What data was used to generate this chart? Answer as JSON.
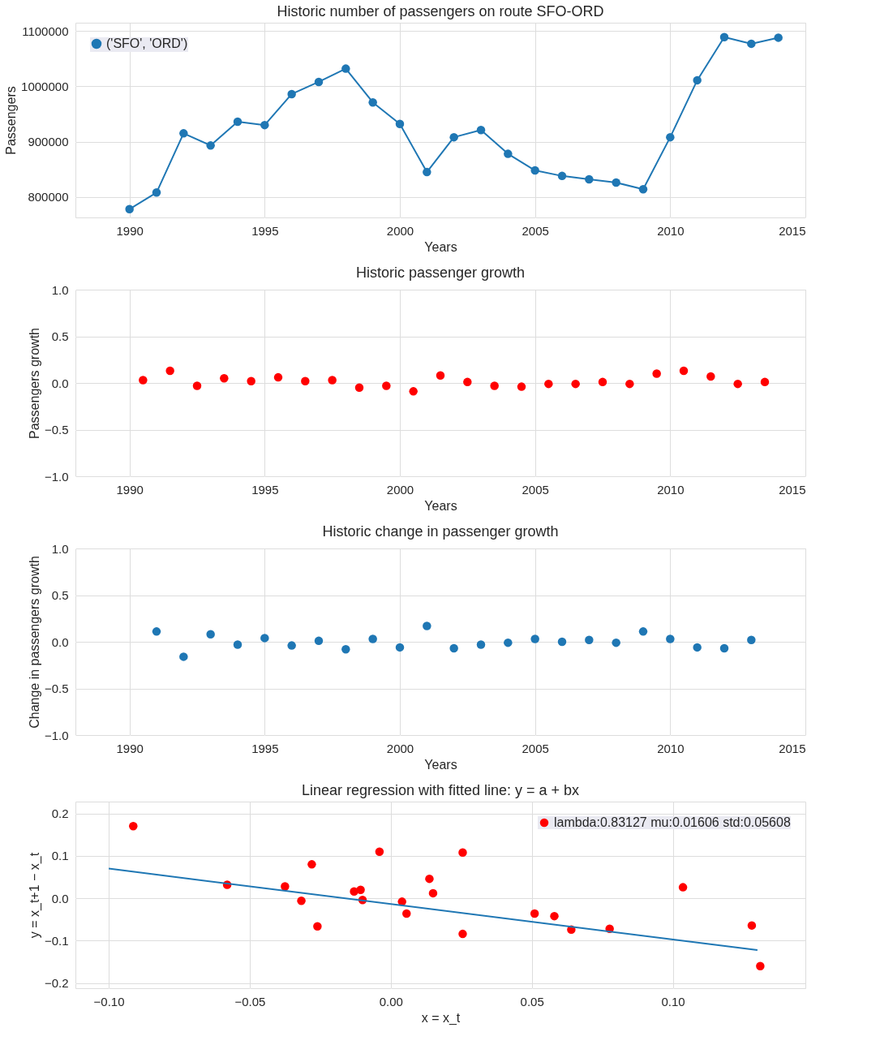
{
  "chart_data": [
    {
      "type": "line",
      "title": "Historic number of passengers on route SFO-ORD",
      "xlabel": "Years",
      "ylabel": "Passengers",
      "marker": "circle",
      "grid": true,
      "legend": "top left",
      "xlim": [
        1988,
        2015
      ],
      "xticks": [
        1990,
        1995,
        2000,
        2005,
        2010,
        2015
      ],
      "ylim": [
        763000,
        1115000
      ],
      "yticks": [
        800000,
        900000,
        1000000,
        1100000
      ],
      "x": [
        1990,
        1991,
        1992,
        1993,
        1994,
        1995,
        1996,
        1997,
        1998,
        1999,
        2000,
        2001,
        2002,
        2003,
        2004,
        2005,
        2006,
        2007,
        2008,
        2009,
        2010,
        2011,
        2012,
        2013,
        2014
      ],
      "series": [
        {
          "name": "('SFO', 'ORD')",
          "color": "#1f77b4",
          "values": [
            778000,
            808000,
            915000,
            893000,
            936000,
            930000,
            986000,
            1008000,
            1032000,
            971000,
            932000,
            845000,
            908000,
            921000,
            878000,
            848000,
            838000,
            832000,
            826000,
            814000,
            908000,
            1011000,
            1089000,
            1077000,
            1088000
          ]
        }
      ]
    },
    {
      "type": "scatter",
      "title": "Historic passenger growth",
      "xlabel": "Years",
      "ylabel": "Passengers growth",
      "grid": true,
      "xlim": [
        1988,
        2015
      ],
      "xticks": [
        1990,
        1995,
        2000,
        2005,
        2010,
        2015
      ],
      "ylim": [
        -1,
        1
      ],
      "yticks": [
        {
          "value": -1,
          "label": "−1.0"
        },
        {
          "value": -0.5,
          "label": "−0.5"
        },
        {
          "value": 0,
          "label": "0.0"
        },
        {
          "value": 0.5,
          "label": "0.5"
        },
        {
          "value": 1,
          "label": "1.0"
        }
      ],
      "x": [
        1990.5,
        1991.5,
        1992.5,
        1993.5,
        1994.5,
        1995.5,
        1996.5,
        1997.5,
        1998.5,
        1999.5,
        2000.5,
        2001.5,
        2002.5,
        2003.5,
        2004.5,
        2005.5,
        2006.5,
        2007.5,
        2008.5,
        2009.5,
        2010.5,
        2011.5,
        2012.5,
        2013.5
      ],
      "series": [
        {
          "color": "#ff0000",
          "values": [
            0.03,
            0.13,
            -0.03,
            0.05,
            0.02,
            0.06,
            0.02,
            0.03,
            -0.05,
            -0.03,
            -0.09,
            0.08,
            0.01,
            -0.03,
            -0.04,
            -0.01,
            -0.01,
            0.01,
            -0.01,
            0.1,
            0.13,
            0.07,
            -0.01,
            0.01
          ]
        }
      ]
    },
    {
      "type": "scatter",
      "title": "Historic change in passenger growth",
      "xlabel": "Years",
      "ylabel": "Change in passengers growth",
      "grid": true,
      "xlim": [
        1988,
        2015
      ],
      "xticks": [
        1990,
        1995,
        2000,
        2005,
        2010,
        2015
      ],
      "ylim": [
        -1,
        1
      ],
      "yticks": [
        {
          "value": -1,
          "label": "−1.0"
        },
        {
          "value": -0.5,
          "label": "−0.5"
        },
        {
          "value": 0,
          "label": "0.0"
        },
        {
          "value": 0.5,
          "label": "0.5"
        },
        {
          "value": 1,
          "label": "1.0"
        }
      ],
      "x": [
        1991,
        1992,
        1993,
        1994,
        1995,
        1996,
        1997,
        1998,
        1999,
        2000,
        2001,
        2002,
        2003,
        2004,
        2005,
        2006,
        2007,
        2008,
        2009,
        2010,
        2011,
        2012,
        2013
      ],
      "series": [
        {
          "color": "#1f77b4",
          "values": [
            0.11,
            -0.16,
            0.08,
            -0.03,
            0.04,
            -0.04,
            0.01,
            -0.08,
            0.03,
            -0.06,
            0.17,
            -0.07,
            -0.03,
            -0.01,
            0.03,
            0,
            0.02,
            -0.01,
            0.11,
            0.03,
            -0.06,
            -0.07,
            0.02
          ]
        }
      ]
    },
    {
      "type": "scatter",
      "title": "Linear regression with fitted line: y = a + bx",
      "xlabel": "x = x_t",
      "ylabel": "y = x_t+1 − x_t",
      "grid": true,
      "legend": "top right",
      "xlim": [
        -0.1118,
        0.147
      ],
      "xticks": [
        {
          "value": -0.1,
          "label": "−0.10"
        },
        {
          "value": -0.05,
          "label": "−0.05"
        },
        {
          "value": 0,
          "label": "0.00"
        },
        {
          "value": 0.05,
          "label": "0.05"
        },
        {
          "value": 0.1,
          "label": "0.10"
        }
      ],
      "ylim": [
        -0.212,
        0.228
      ],
      "yticks": [
        {
          "value": -0.2,
          "label": "−0.2"
        },
        {
          "value": -0.1,
          "label": "−0.1"
        },
        {
          "value": 0,
          "label": "0.0"
        },
        {
          "value": 0.1,
          "label": "0.1"
        },
        {
          "value": 0.2,
          "label": "0.2"
        }
      ],
      "series": [
        {
          "name": "lambda:0.83127 mu:0.01606 std:0.05608",
          "color": "#ff0000",
          "x": [
            -0.0913,
            -0.058,
            -0.0375,
            -0.0317,
            -0.028,
            -0.026,
            -0.013,
            -0.0107,
            -0.01,
            -0.004,
            0.004,
            0.0056,
            0.0137,
            0.015,
            0.0255,
            0.0255,
            0.051,
            0.058,
            0.064,
            0.0776,
            0.1036,
            0.128,
            0.131
          ],
          "values": [
            0.17,
            0.032,
            0.028,
            -0.006,
            0.08,
            -0.066,
            0.016,
            0.02,
            -0.004,
            0.11,
            -0.008,
            -0.036,
            0.046,
            0.012,
            -0.084,
            0.108,
            -0.036,
            -0.042,
            -0.074,
            -0.072,
            0.026,
            -0.064,
            -0.16
          ]
        },
        {
          "type": "line",
          "color": "#1f77b4",
          "x": [
            -0.1,
            0.13
          ],
          "values": [
            0.07,
            -0.122
          ]
        }
      ]
    }
  ]
}
